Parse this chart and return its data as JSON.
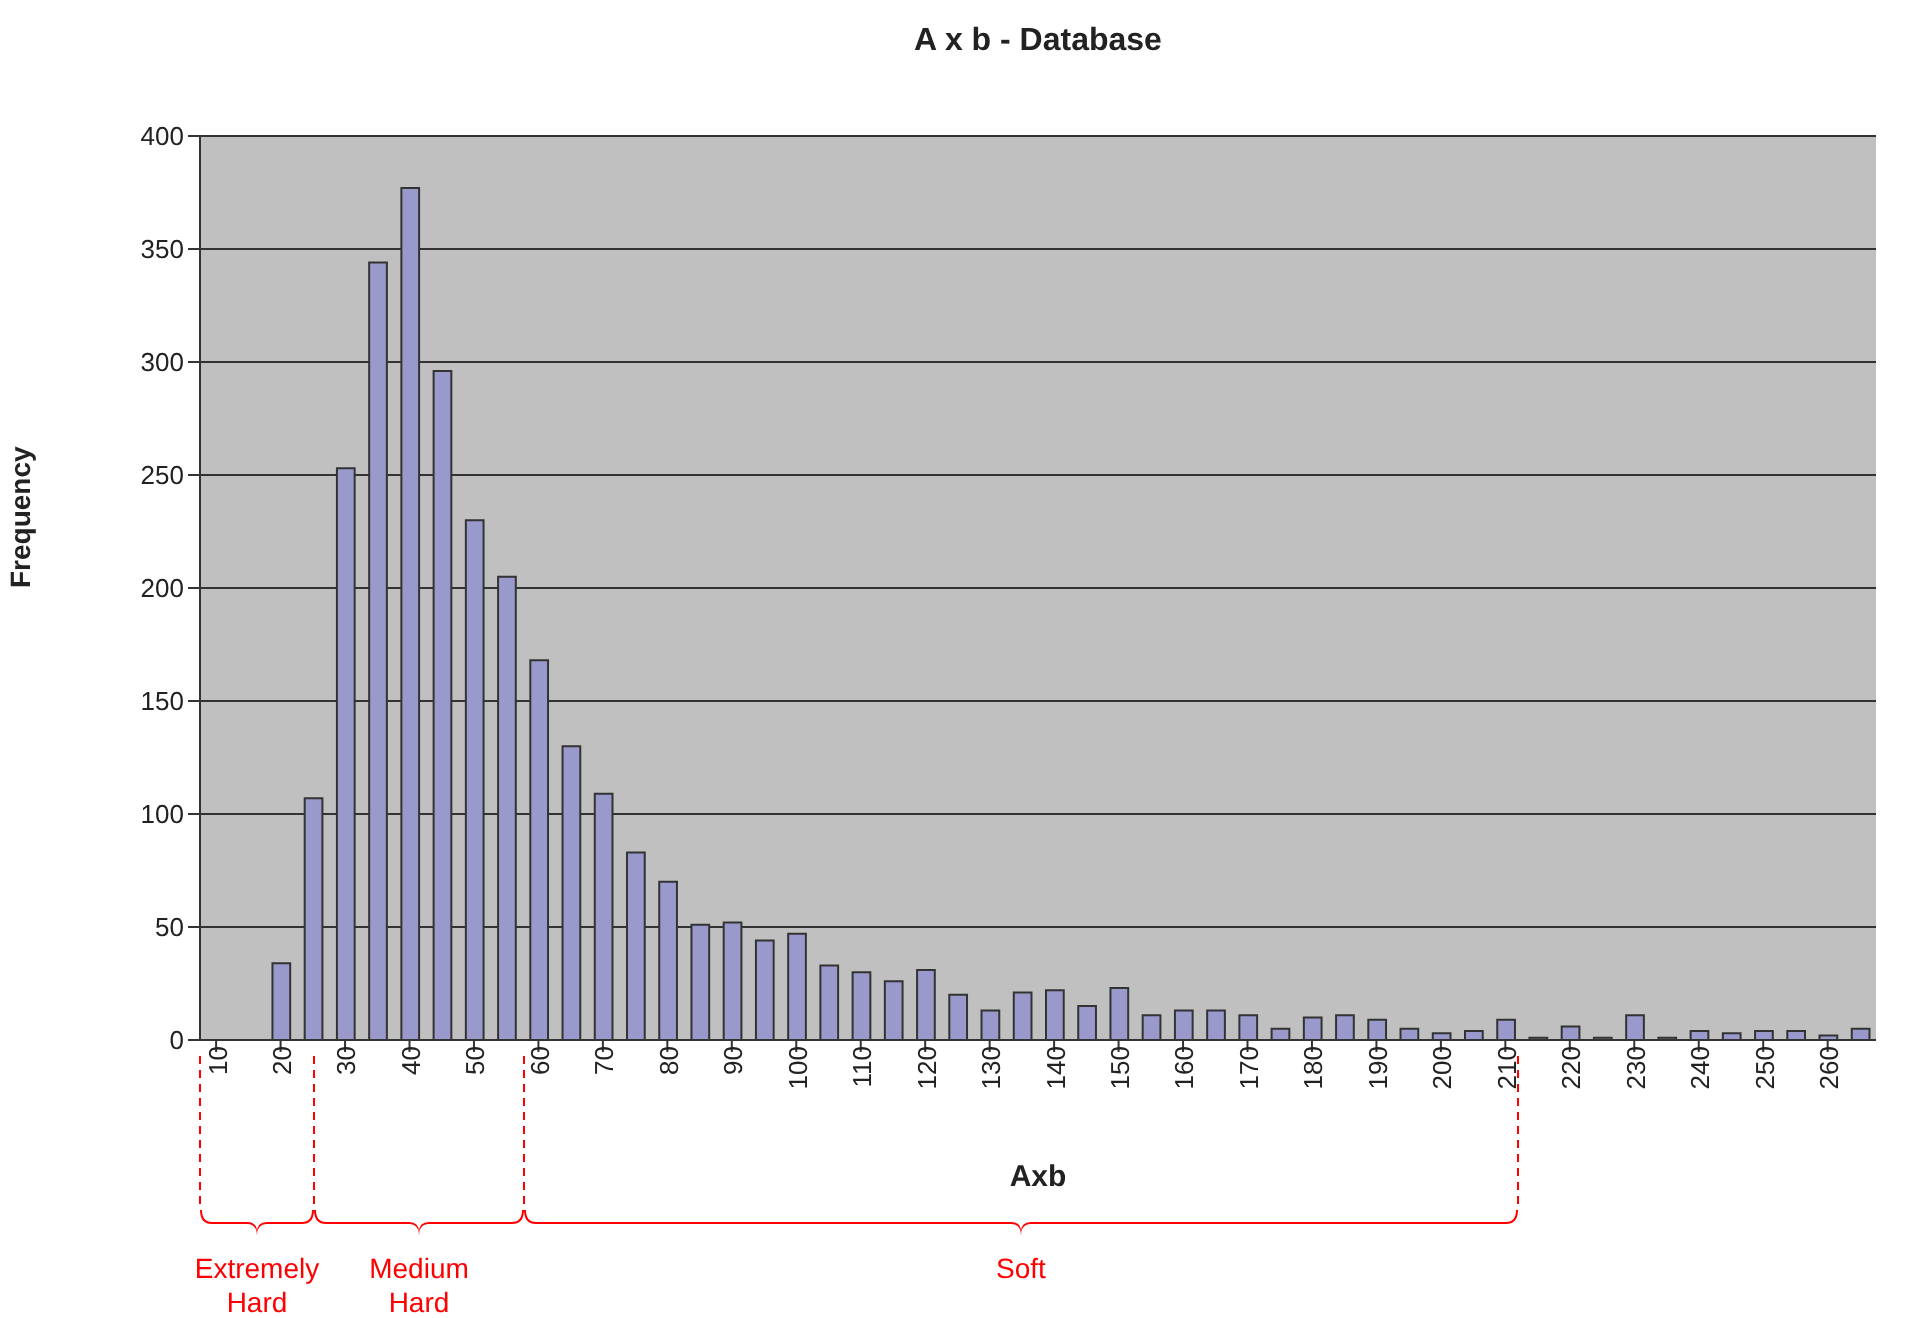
{
  "chart_data": {
    "type": "bar",
    "title": "A x b - Database",
    "xlabel": "Axb",
    "ylabel": "Frequency",
    "x": [
      10,
      15,
      20,
      25,
      30,
      35,
      40,
      45,
      50,
      55,
      60,
      65,
      70,
      75,
      80,
      85,
      90,
      95,
      100,
      105,
      110,
      115,
      120,
      125,
      130,
      135,
      140,
      145,
      150,
      155,
      160,
      165,
      170,
      175,
      180,
      185,
      190,
      195,
      200,
      205,
      210,
      215,
      220,
      225,
      230,
      235,
      240,
      245,
      250,
      255,
      260,
      265
    ],
    "values": [
      0,
      0,
      34,
      107,
      253,
      344,
      377,
      296,
      230,
      205,
      168,
      130,
      109,
      83,
      70,
      51,
      52,
      44,
      47,
      33,
      30,
      26,
      31,
      20,
      13,
      21,
      22,
      15,
      23,
      11,
      13,
      13,
      11,
      5,
      10,
      11,
      9,
      5,
      3,
      4,
      9,
      1,
      6,
      1,
      11,
      1,
      4,
      3,
      4,
      4,
      2,
      5
    ],
    "color": "#9999cc",
    "xlim": [
      7.5,
      267.5
    ],
    "xticks": [
      10,
      20,
      30,
      40,
      50,
      60,
      70,
      80,
      90,
      100,
      110,
      120,
      130,
      140,
      150,
      160,
      170,
      180,
      190,
      200,
      210,
      220,
      230,
      240,
      250,
      260
    ],
    "ylim": [
      0,
      400
    ],
    "yticks": [
      0,
      50,
      100,
      150,
      200,
      250,
      300,
      350,
      400
    ],
    "grid": "y",
    "annotations": [
      "Extremely Hard",
      "Medium Hard",
      "Soft"
    ]
  }
}
